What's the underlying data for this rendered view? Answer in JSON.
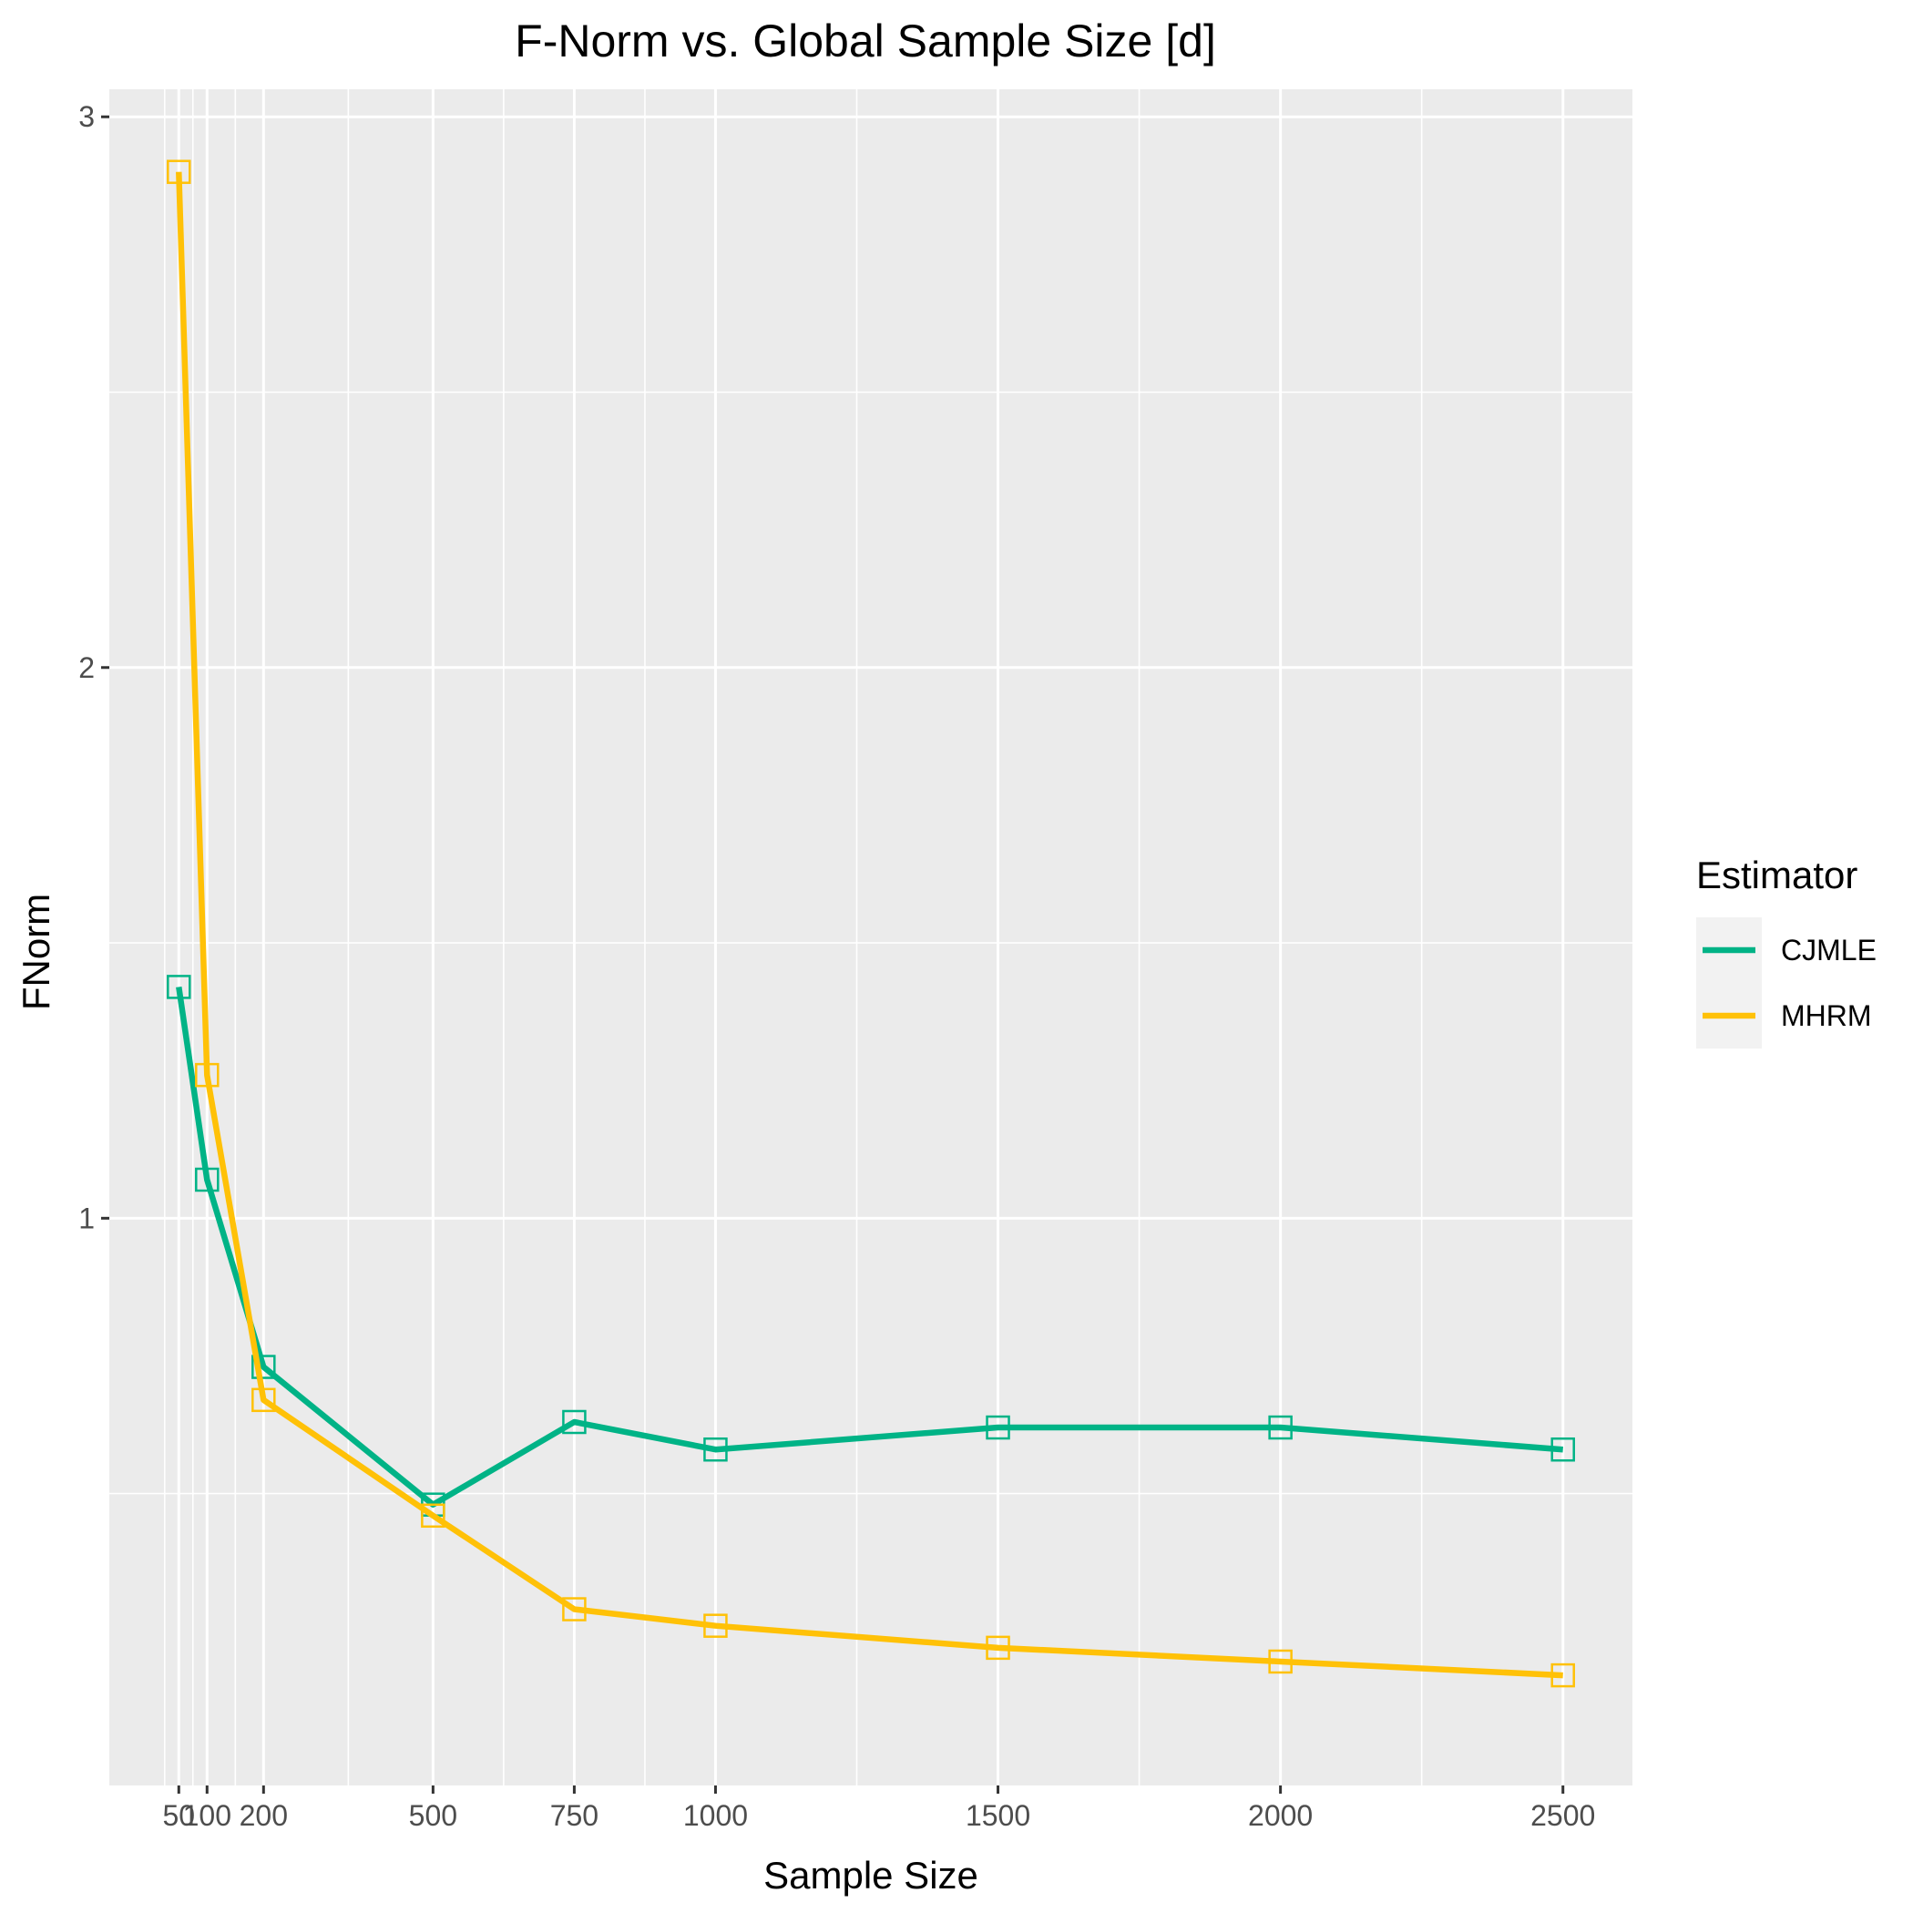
{
  "chart_data": {
    "type": "line",
    "title": "F-Norm vs. Global Sample Size [d]",
    "xlabel": "Sample Size",
    "ylabel": "FNorm",
    "x": [
      50,
      100,
      200,
      500,
      750,
      1000,
      1500,
      2000,
      2500
    ],
    "x_tick_labels": [
      "50",
      "100",
      "200",
      "500",
      "750",
      "1000",
      "1500",
      "2000",
      "2500"
    ],
    "y_ticks": [
      1,
      2,
      3
    ],
    "y_tick_labels": [
      "1",
      "2",
      "3"
    ],
    "xlim": [
      -73,
      2623
    ],
    "ylim": [
      -0.03,
      3.05
    ],
    "grid": true,
    "marker": "open-square",
    "legend": {
      "title": "Estimator",
      "position": "right"
    },
    "series": [
      {
        "name": "CJMLE",
        "color": "#00B386",
        "values": [
          1.42,
          1.07,
          0.73,
          0.48,
          0.63,
          0.58,
          0.62,
          0.62,
          0.58
        ]
      },
      {
        "name": "MHRM",
        "color": "#FFC107",
        "values": [
          2.9,
          1.26,
          0.67,
          0.46,
          0.29,
          0.26,
          0.22,
          0.195,
          0.17
        ]
      }
    ]
  }
}
